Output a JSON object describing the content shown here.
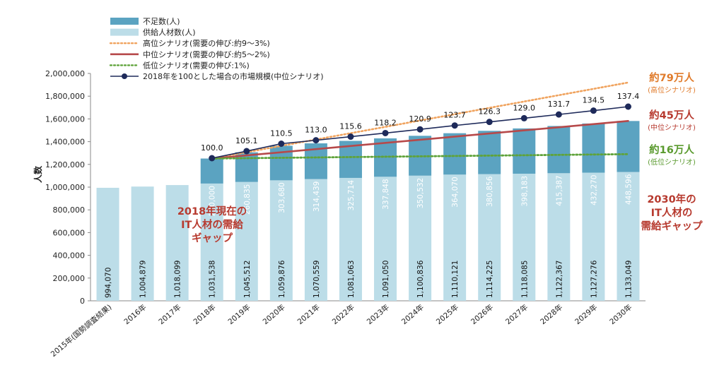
{
  "chart_data": {
    "type": "bar",
    "ylabel": "人数",
    "ylim": [
      0,
      2000000
    ],
    "yticks": [
      "0",
      "200,000",
      "400,000",
      "600,000",
      "800,000",
      "1,000,000",
      "1,200,000",
      "1,400,000",
      "1,600,000",
      "1,800,000",
      "2,000,000"
    ],
    "categories": [
      "2015年(国勢調査結果)",
      "2016年",
      "2017年",
      "2018年",
      "2019年",
      "2020年",
      "2021年",
      "2022年",
      "2023年",
      "2024年",
      "2025年",
      "2026年",
      "2027年",
      "2028年",
      "2029年",
      "2030年"
    ],
    "series": [
      {
        "name": "供給人材数(人)",
        "values": [
          994070,
          1004879,
          1018099,
          1031538,
          1045512,
          1059876,
          1070559,
          1081063,
          1091050,
          1100836,
          1110121,
          1114225,
          1118085,
          1122367,
          1127276,
          1133049
        ],
        "labels": [
          "994,070",
          "1,004,879",
          "1,018,099",
          "1,031,538",
          "1,045,512",
          "1,059,876",
          "1,070,559",
          "1,081,063",
          "1,091,050",
          "1,100,836",
          "1,110,121",
          "1,114,225",
          "1,118,085",
          "1,122,367",
          "1,127,276",
          "1,133,049"
        ]
      },
      {
        "name": "不足数(人)",
        "values": [
          null,
          null,
          null,
          220000,
          260835,
          303680,
          314439,
          325714,
          337848,
          350532,
          364070,
          380856,
          398183,
          415387,
          432270,
          448596
        ],
        "labels": [
          "",
          "",
          "",
          "220,000",
          "260,835",
          "303,680",
          "314,439",
          "325,714",
          "337,848",
          "350,532",
          "364,070",
          "380,856",
          "398,183",
          "415,387",
          "432,270",
          "448,596"
        ]
      }
    ],
    "lines": [
      {
        "name": "高位シナリオ(需要の伸び:約9〜3%)",
        "start": 1251538,
        "end": 1920000
      },
      {
        "name": "中位シナリオ(需要の伸び:約5〜2%)",
        "start": 1251538,
        "end": 1581645
      },
      {
        "name": "低位シナリオ(需要の伸び:1%)",
        "start": 1251538,
        "end": 1290000
      }
    ],
    "market_index": {
      "name": "2018年を100とした場合の市場規模(中位シナリオ)",
      "values": [
        null,
        null,
        null,
        100.0,
        105.1,
        110.5,
        113.0,
        115.6,
        118.2,
        120.9,
        123.7,
        126.3,
        129.0,
        131.7,
        134.5,
        137.4
      ],
      "labels": [
        "",
        "",
        "",
        "100.0",
        "105.1",
        "110.5",
        "113.0",
        "115.6",
        "118.2",
        "120.9",
        "123.7",
        "126.3",
        "129.0",
        "131.7",
        "134.5",
        "137.4"
      ]
    },
    "legend_position": "top-left",
    "grid": false
  },
  "legend": [
    {
      "label": "不足数(人)",
      "kind": "box",
      "color": "#5ba3c1"
    },
    {
      "label": "供給人材数(人)",
      "kind": "box",
      "color": "#bcdde8"
    },
    {
      "label": "高位シナリオ(需要の伸び:約9〜3%)",
      "kind": "dotted",
      "color": "#f0a35e"
    },
    {
      "label": "中位シナリオ(需要の伸び:約5〜2%)",
      "kind": "solid",
      "color": "#b6494a"
    },
    {
      "label": "低位シナリオ(需要の伸び:1%)",
      "kind": "dotted",
      "color": "#5fa33a"
    },
    {
      "label": "2018年を100とした場合の市場規模(中位シナリオ)",
      "kind": "marker",
      "color": "#1e2a5a"
    }
  ],
  "annotations": {
    "high_big": "約79万人",
    "high_small": "(高位シナリオ)",
    "mid_big": "約45万人",
    "mid_small": "(中位シナリオ)",
    "low_big": "約16万人",
    "low_small": "(低位シナリオ)",
    "gap_2030": [
      "2030年の",
      "IT人材の",
      "需給ギャップ"
    ],
    "gap_2018": [
      "2018年現在の",
      "IT人材の需給",
      "ギャップ"
    ]
  },
  "colors": {
    "supply": "#bcdde8",
    "shortage": "#5ba3c1",
    "high": "#f0a35e",
    "mid": "#b6494a",
    "low": "#5fa33a",
    "index": "#1e2a5a",
    "ann_orange": "#e07b2b",
    "ann_red": "#b73a2f",
    "ann_green": "#5a9a2e"
  }
}
